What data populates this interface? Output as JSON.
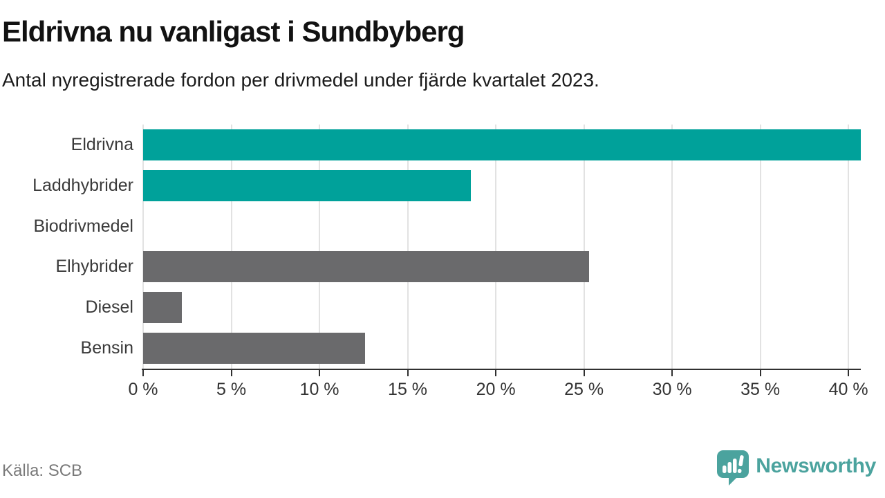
{
  "header": {
    "title": "Eldrivna nu vanligast i Sundbyberg",
    "subtitle": "Antal nyregistrerade fordon per drivmedel under fjärde kvartalet 2023."
  },
  "chart_data": {
    "type": "bar",
    "orientation": "horizontal",
    "title": "Eldrivna nu vanligast i Sundbyberg",
    "subtitle": "Antal nyregistrerade fordon per drivmedel under fjärde kvartalet 2023.",
    "categories": [
      "Eldrivna",
      "Laddhybrider",
      "Biodrivmedel",
      "Elhybrider",
      "Diesel",
      "Bensin"
    ],
    "values": [
      40.7,
      18.6,
      0,
      25.3,
      2.2,
      12.6
    ],
    "unit": "%",
    "bar_colors": [
      "#00a19a",
      "#00a19a",
      "#6a6a6c",
      "#6a6a6c",
      "#6a6a6c",
      "#6a6a6c"
    ],
    "xlim": [
      0,
      40.7
    ],
    "x_ticks": [
      0,
      5,
      10,
      15,
      20,
      25,
      30,
      35,
      40
    ],
    "x_tick_labels": [
      "0 %",
      "5 %",
      "10 %",
      "15 %",
      "20 %",
      "25 %",
      "30 %",
      "35 %",
      "40 %"
    ],
    "grid": "vertical",
    "legend": "none",
    "xlabel": "",
    "ylabel": ""
  },
  "footer": {
    "source": "Källa: SCB",
    "brand": "Newsworthy"
  },
  "colors": {
    "teal": "#00a19a",
    "gray": "#6a6a6c",
    "gridline": "#e2e2e2",
    "axis": "#303030",
    "brand_teal": "#4ba39e"
  }
}
